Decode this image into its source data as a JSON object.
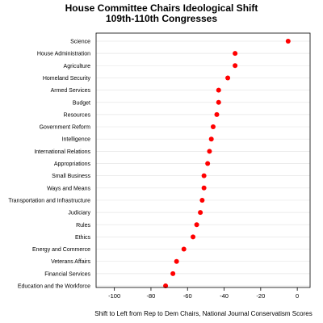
{
  "chart_data": {
    "type": "scatter",
    "title": "House Committee Chairs Ideological Shift",
    "subtitle": "109th-110th Congresses",
    "xlabel": "Shift to Left from Rep to Dem Chairs, National Journal Conservatism Scores",
    "ylabel": "",
    "xlim": [
      -110,
      7
    ],
    "xticks": [
      -100,
      -80,
      -60,
      -40,
      -20,
      0
    ],
    "grid": true,
    "marker_color": "#ff0000",
    "categories": [
      "Science",
      "House Administration",
      "Agriculture",
      "Homeland Security",
      "Armed Services",
      "Budget",
      "Resources",
      "Government Reform",
      "Intelligence",
      "International Relations",
      "Appropriations",
      "Small Business",
      "Ways and Means",
      "Transportation and Infrastructure",
      "Judiciary",
      "Rules",
      "Ethics",
      "Energy and Commerce",
      "Veterans Affairs",
      "Financial Services",
      "Education and the Workforce"
    ],
    "values": [
      -5,
      -34,
      -34,
      -38,
      -43,
      -43,
      -44,
      -46,
      -47,
      -48,
      -49,
      -51,
      -51,
      -52,
      -53,
      -55,
      -57,
      -62,
      -66,
      -68,
      -72
    ]
  }
}
